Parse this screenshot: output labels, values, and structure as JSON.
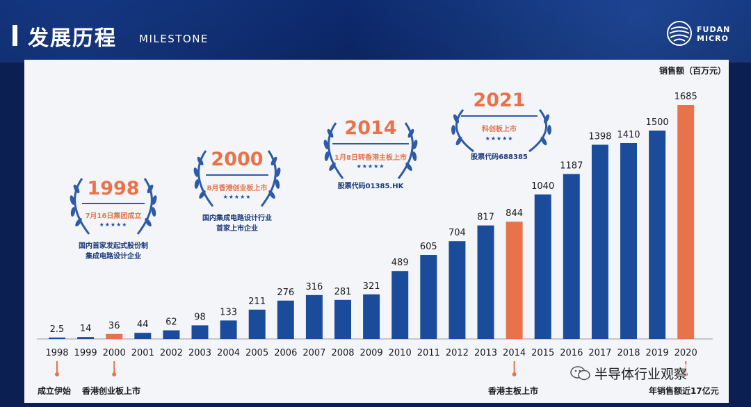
{
  "header": {
    "title": "发展历程",
    "subtitle": "MILESTONE",
    "logo_line1": "FUDAN",
    "logo_line2": "MICRO"
  },
  "colors": {
    "bar": "#1b4c9c",
    "highlight": "#e8734a",
    "background": "#f3f5f9"
  },
  "milestones": [
    {
      "year": "1998",
      "event": "7月16日集团成立",
      "stars": "★★★★★",
      "desc": [
        "国内首家发起式股份制",
        "集成电路设计企业"
      ]
    },
    {
      "year": "2000",
      "event": "8月香港创业板上市",
      "stars": "★★★★★",
      "desc": [
        "国内集成电路设计行业",
        "首家上市企业"
      ]
    },
    {
      "year": "2014",
      "event": "1月8日转香港主板上市",
      "stars": "★★★★★",
      "desc": [
        "股票代码01385.HK"
      ]
    },
    {
      "year": "2021",
      "event": "科创板上市",
      "stars": "★★★★★",
      "desc": [
        "股票代码688385"
      ]
    }
  ],
  "bottom_labels": {
    "y1998": "成立伊始",
    "y2000": "香港创业板上市",
    "y2014": "香港主板上市",
    "y2020": "年销售额近17亿元"
  },
  "watermark": "半导体行业观察",
  "chart_data": {
    "type": "bar",
    "ylabel": "销售额（百万元）",
    "categories": [
      "1998",
      "1999",
      "2000",
      "2001",
      "2002",
      "2003",
      "2004",
      "2005",
      "2006",
      "2007",
      "2008",
      "2009",
      "2010",
      "2011",
      "2012",
      "2013",
      "2014",
      "2015",
      "2016",
      "2017",
      "2018",
      "2019",
      "2020"
    ],
    "values": [
      2.5,
      14,
      36,
      44,
      62,
      98,
      133,
      211,
      276,
      316,
      281,
      321,
      489,
      605,
      704,
      817,
      844,
      1040,
      1187,
      1398,
      1410,
      1500,
      1685
    ],
    "value_labels": [
      "2.5",
      "14",
      "36",
      "44",
      "62",
      "98",
      "133",
      "211",
      "276",
      "316",
      "281",
      "321",
      "489",
      "605",
      "704",
      "817",
      "844",
      "1040",
      "1187",
      "1398",
      "1410",
      "1500",
      "1685"
    ],
    "highlighted": [
      "2000",
      "2014",
      "2020"
    ]
  }
}
